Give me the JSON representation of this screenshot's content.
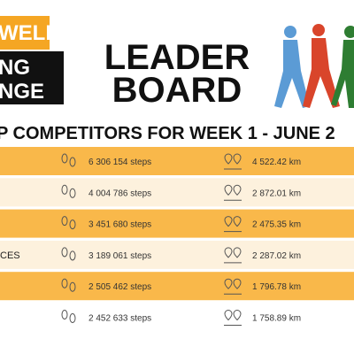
{
  "logo": {
    "line1": "WELL",
    "line2": "NG",
    "line3": "NGE"
  },
  "title": {
    "line1": "LEADER",
    "line2": "BOARD"
  },
  "subtitle": "P COMPETITORS FOR WEEK 1 - JUNE 2",
  "rows": [
    {
      "steps": "6 306 154 steps",
      "distance": "4 522.42 km"
    },
    {
      "steps": "4 004 786 steps",
      "distance": "2 872.01 km"
    },
    {
      "steps": "3 451 680 steps",
      "distance": "2 475.35 km"
    },
    {
      "name": "CES",
      "steps": "3 189 061 steps",
      "distance": "2 287.02 km"
    },
    {
      "steps": "2 505 462 steps",
      "distance": "1 796.78 km"
    },
    {
      "steps": "2 452 633  steps",
      "distance": "1 758.89 km"
    }
  ]
}
